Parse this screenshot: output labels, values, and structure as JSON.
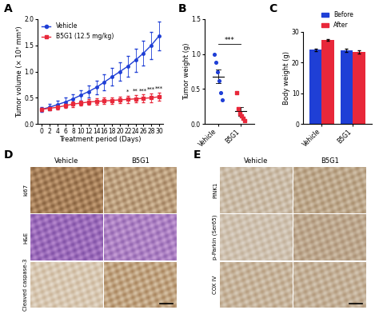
{
  "chart_data": [
    {
      "type": "line",
      "panel": "A",
      "xlabel": "Treatment period (Days)",
      "ylabel": "Tumor volume (× 10³ mm³)",
      "x": [
        0,
        2,
        4,
        6,
        8,
        10,
        12,
        14,
        16,
        18,
        20,
        22,
        24,
        26,
        28,
        30
      ],
      "xlim": [
        -1,
        31
      ],
      "xticks": [
        0,
        2,
        4,
        6,
        8,
        10,
        12,
        14,
        16,
        18,
        20,
        22,
        24,
        26,
        28,
        30
      ],
      "ylim": [
        0,
        2.0
      ],
      "yticks": [
        {
          "value": 0,
          "label": "0.0"
        },
        {
          "value": 0.5,
          "label": "0.5"
        },
        {
          "value": 1.0,
          "label": "1.0"
        },
        {
          "value": 1.5,
          "label": "1.5"
        },
        {
          "value": 2.0,
          "label": "2.0"
        }
      ],
      "legend": "upper left",
      "series": [
        {
          "name": "Vehicle",
          "color": "#1f3fd6",
          "marker": "circle",
          "values": [
            0.28,
            0.32,
            0.37,
            0.42,
            0.48,
            0.55,
            0.62,
            0.7,
            0.8,
            0.9,
            1.0,
            1.1,
            1.22,
            1.35,
            1.5,
            1.68
          ],
          "errors": [
            0.05,
            0.06,
            0.07,
            0.08,
            0.09,
            0.1,
            0.12,
            0.13,
            0.15,
            0.17,
            0.18,
            0.2,
            0.22,
            0.24,
            0.26,
            0.28
          ]
        },
        {
          "name": "B5G1 (12.5 mg/kg)",
          "color": "#e8283a",
          "marker": "square",
          "values": [
            0.28,
            0.3,
            0.32,
            0.35,
            0.38,
            0.4,
            0.42,
            0.43,
            0.44,
            0.45,
            0.46,
            0.47,
            0.48,
            0.49,
            0.5,
            0.52
          ],
          "errors": [
            0.03,
            0.03,
            0.04,
            0.04,
            0.05,
            0.05,
            0.05,
            0.06,
            0.06,
            0.06,
            0.06,
            0.07,
            0.07,
            0.07,
            0.08,
            0.08
          ]
        }
      ],
      "annotations": [
        {
          "x": 22,
          "y": 0.57,
          "text": "*"
        },
        {
          "x": 24,
          "y": 0.58,
          "text": "**"
        },
        {
          "x": 26,
          "y": 0.59,
          "text": "***"
        },
        {
          "x": 28,
          "y": 0.61,
          "text": "***"
        },
        {
          "x": 30,
          "y": 0.63,
          "text": "***"
        }
      ]
    },
    {
      "type": "scatter",
      "panel": "B",
      "ylabel": "Tumor weight (g)",
      "categories": [
        "Vehicle",
        "B5G1"
      ],
      "values": [
        [
          1.0,
          0.88,
          0.75,
          0.62,
          0.45,
          0.35
        ],
        [
          0.45,
          0.22,
          0.15,
          0.12,
          0.08,
          0.05
        ]
      ],
      "means": [
        0.68,
        0.18
      ],
      "errors": [
        0.1,
        0.06
      ],
      "colors": [
        "#1f3fd6",
        "#e8283a"
      ],
      "ylim": [
        0,
        1.5
      ],
      "yticks": [
        {
          "value": 0,
          "label": "0.0"
        },
        {
          "value": 0.5,
          "label": "0.5"
        },
        {
          "value": 1.0,
          "label": "1.0"
        },
        {
          "value": 1.5,
          "label": "1.5"
        }
      ],
      "annotations": [
        {
          "y": 1.15,
          "text": "***"
        }
      ]
    },
    {
      "type": "bar",
      "panel": "C",
      "ylabel": "Body weight (g)",
      "categories": [
        "Vehicle",
        "B5G1"
      ],
      "series": [
        {
          "name": "Before",
          "color": "#1f3fd6",
          "values": [
            24.2,
            24.0
          ],
          "errors": [
            0.4,
            0.6
          ]
        },
        {
          "name": "After",
          "color": "#e8283a",
          "values": [
            27.3,
            23.5
          ],
          "errors": [
            0.3,
            0.5
          ]
        }
      ],
      "ylim": [
        0,
        30
      ],
      "yticks": [
        0,
        10,
        20,
        30
      ],
      "legend": "top"
    }
  ],
  "image_panels": [
    {
      "panel": "D",
      "columns": [
        "Vehicle",
        "B5G1"
      ],
      "rows": [
        "ki67",
        "H&E",
        "Cleaved caspase-3"
      ]
    },
    {
      "panel": "E",
      "columns": [
        "Vehicle",
        "B5G1"
      ],
      "rows": [
        "PINK1",
        "p-Parkin (Ser65)",
        "COX IV"
      ]
    }
  ]
}
